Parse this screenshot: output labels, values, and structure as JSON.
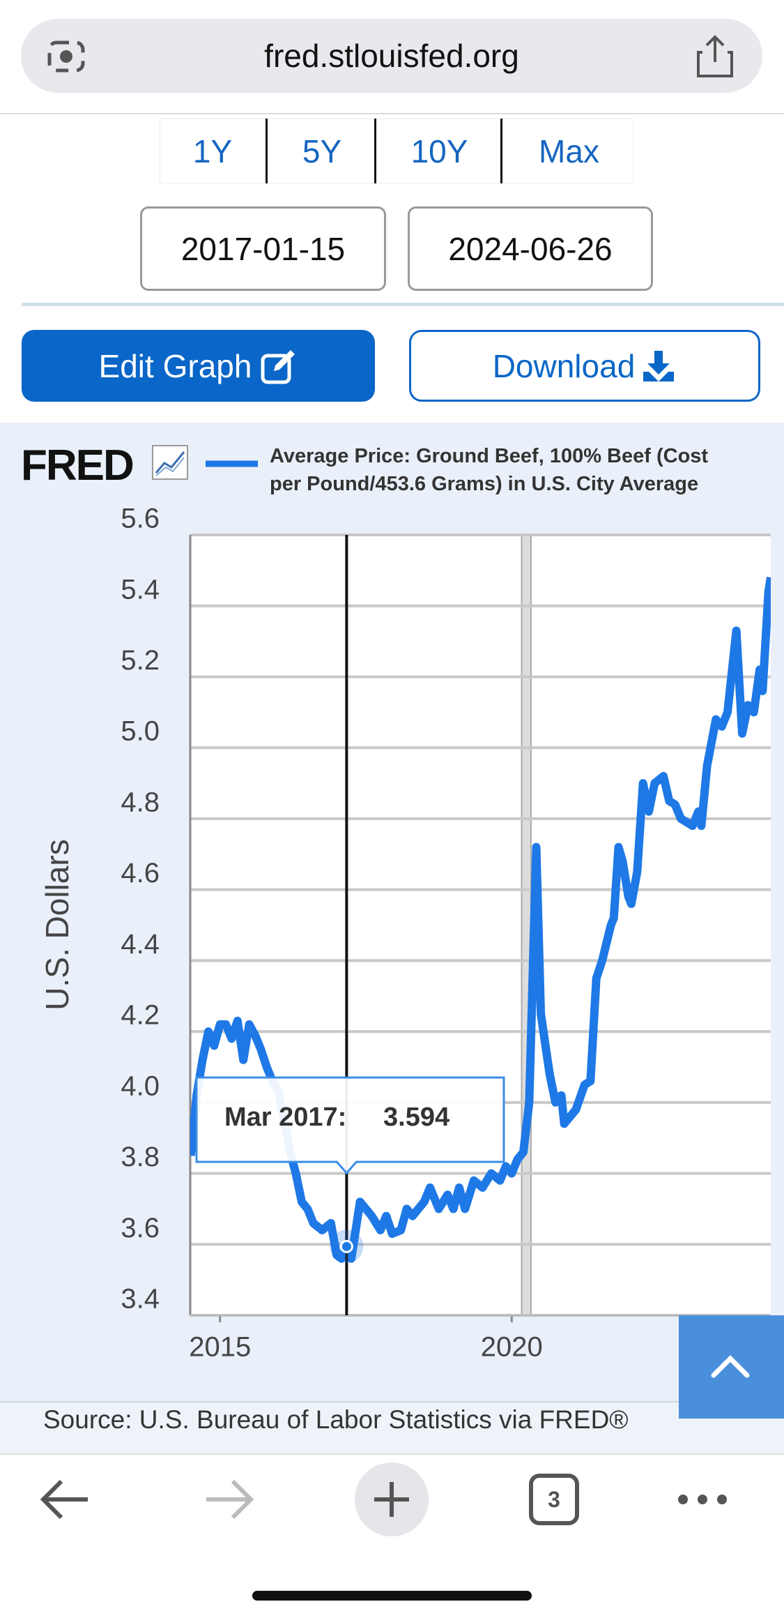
{
  "browser": {
    "url": "fred.stlouisfed.org",
    "tab_count": "3"
  },
  "range_buttons": [
    "1Y",
    "5Y",
    "10Y",
    "Max"
  ],
  "date_range": {
    "start": "2017-01-15",
    "end": "2024-06-26"
  },
  "buttons": {
    "edit": "Edit Graph",
    "download": "Download"
  },
  "logo": "FRED",
  "source": "Source: U.S. Bureau of Labor Statistics via FRED®",
  "chart_data": {
    "type": "line",
    "y_label": "U.S. Dollars",
    "x": [
      2014.5,
      2014.6,
      2014.7,
      2014.8,
      2014.9,
      2015.0,
      2015.1,
      2015.2,
      2015.3,
      2015.4,
      2015.5,
      2015.6,
      2015.7,
      2015.8,
      2015.9,
      2016.0,
      2016.1,
      2016.2,
      2016.3,
      2016.4,
      2016.5,
      2016.6,
      2016.75,
      2016.9,
      2017.0,
      2017.08,
      2017.17,
      2017.25,
      2017.4,
      2017.6,
      2017.75,
      2017.85,
      2017.95,
      2018.1,
      2018.2,
      2018.3,
      2018.5,
      2018.6,
      2018.75,
      2018.9,
      2019.0,
      2019.1,
      2019.2,
      2019.35,
      2019.5,
      2019.65,
      2019.8,
      2019.9,
      2020.0,
      2020.1,
      2020.2,
      2020.3,
      2020.42,
      2020.5,
      2020.65,
      2020.75,
      2020.85,
      2020.9,
      2021.0,
      2021.1,
      2021.25,
      2021.35,
      2021.45,
      2021.55,
      2021.7,
      2021.75,
      2021.83,
      2021.9,
      2022.0,
      2022.05,
      2022.15,
      2022.25,
      2022.35,
      2022.45,
      2022.6,
      2022.7,
      2022.8,
      2022.9,
      2023.1,
      2023.2,
      2023.25,
      2023.35,
      2023.5,
      2023.6,
      2023.7,
      2023.85,
      2023.95,
      2024.05,
      2024.15,
      2024.25,
      2024.3,
      2024.4,
      2024.44
    ],
    "series": [
      {
        "name": "Average Price: Ground Beef, 100% Beef (Cost per Pound/453.6 Grams) in U.S. City Average",
        "color": "#1e78e6",
        "values": [
          3.85,
          4.02,
          4.12,
          4.2,
          4.16,
          4.22,
          4.22,
          4.18,
          4.23,
          4.12,
          4.22,
          4.19,
          4.15,
          4.1,
          4.06,
          4.03,
          3.95,
          3.86,
          3.8,
          3.72,
          3.7,
          3.66,
          3.64,
          3.66,
          3.57,
          3.56,
          3.594,
          3.56,
          3.72,
          3.68,
          3.64,
          3.68,
          3.63,
          3.64,
          3.7,
          3.68,
          3.72,
          3.76,
          3.7,
          3.74,
          3.7,
          3.76,
          3.7,
          3.78,
          3.76,
          3.8,
          3.78,
          3.82,
          3.8,
          3.84,
          3.86,
          4.0,
          4.72,
          4.25,
          4.08,
          4.0,
          4.02,
          3.94,
          3.96,
          3.98,
          4.05,
          4.06,
          4.35,
          4.4,
          4.5,
          4.52,
          4.72,
          4.68,
          4.58,
          4.56,
          4.65,
          4.9,
          4.82,
          4.9,
          4.92,
          4.85,
          4.84,
          4.8,
          4.78,
          4.82,
          4.78,
          4.95,
          5.08,
          5.06,
          5.1,
          5.33,
          5.04,
          5.12,
          5.1,
          5.22,
          5.16,
          5.44,
          5.48
        ]
      }
    ],
    "xlim": [
      2014.49,
      2024.44
    ],
    "xticks": [
      2015,
      2020
    ],
    "ylim": [
      3.4,
      5.6
    ],
    "yticks": [
      3.4,
      3.6,
      3.8,
      {
        "value": 4,
        "label": "4.0"
      },
      4.2,
      4.4,
      4.6,
      4.8,
      {
        "value": 5,
        "label": "5.0"
      },
      5.2,
      5.4,
      5.6
    ],
    "grid": true,
    "shaded_x": [
      2020.17,
      2020.33
    ],
    "tooltip": {
      "label": "Mar 2017:",
      "value": 3.594
    }
  }
}
